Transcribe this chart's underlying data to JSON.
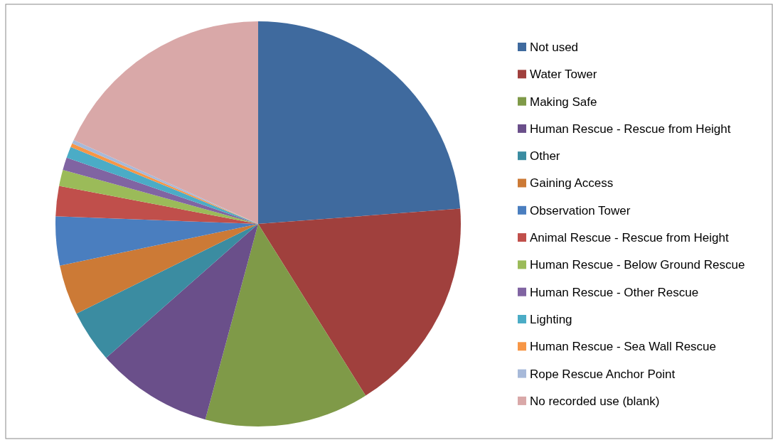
{
  "chart_data": {
    "type": "pie",
    "legend": "right",
    "categories": [
      "Not used",
      "Water Tower",
      "Making Safe",
      "Human Rescue - Rescue from Height",
      "Other",
      "Gaining Access",
      "Observation Tower",
      "Animal Rescue - Rescue from Height",
      "Human Rescue - Below Ground Rescue",
      "Human Rescue - Other Rescue",
      "Lighting",
      "Human Rescue - Sea Wall Rescue",
      "Rope Rescue Anchor Point",
      "No recorded use (blank)"
    ],
    "values": [
      23.8,
      17.3,
      13.1,
      9.3,
      4.2,
      4.0,
      3.9,
      2.4,
      1.3,
      1.0,
      0.9,
      0.3,
      0.3,
      18.2
    ],
    "colors": [
      "#3f6a9e",
      "#a0403d",
      "#7f9a48",
      "#6a4f8a",
      "#3b8ca1",
      "#cc7a36",
      "#4a7ebf",
      "#c04f4b",
      "#9bbb59",
      "#8064a2",
      "#4bacc6",
      "#f79646",
      "#a7b9d9",
      "#d9a8a8"
    ]
  }
}
